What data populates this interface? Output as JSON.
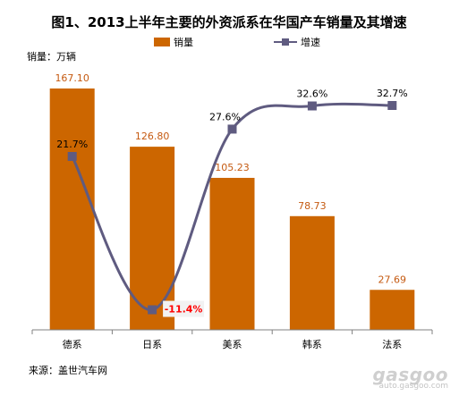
{
  "title": "图1、2013上半年主要的外资派系在华国产车销量及其增速",
  "unit_label": "销量：万辆",
  "source": "来源：盖世汽车网",
  "watermark": {
    "logo": "gasgoo",
    "url": "auto.gasgoo.com"
  },
  "colors": {
    "bar": "#cc6600",
    "line": "#5f5b80",
    "bar_label": "#c55a11",
    "line_label": "#000000",
    "negative_label": "#ff0000",
    "negative_label_bg": "#f2f2f2",
    "axis": "#808080"
  },
  "chart_data": {
    "type": "bar",
    "title": "图1、2013上半年主要的外资派系在华国产车销量及其增速",
    "categories": [
      "德系",
      "日系",
      "美系",
      "韩系",
      "法系"
    ],
    "series": [
      {
        "name": "销量",
        "type": "bar",
        "axis": "left",
        "values": [
          167.1,
          126.8,
          105.23,
          78.73,
          27.69
        ],
        "labels": [
          "167.10",
          "126.80",
          "105.23",
          "78.73",
          "27.69"
        ]
      },
      {
        "name": "增速",
        "type": "line",
        "axis": "right",
        "smooth": true,
        "values": [
          21.7,
          -11.4,
          27.6,
          32.6,
          32.7
        ],
        "labels": [
          "21.7%",
          "-11.4%",
          "27.6%",
          "32.6%",
          "32.7%"
        ]
      }
    ],
    "ylabel": "销量：万辆",
    "xlabel": "",
    "ylim": [
      0,
      180
    ],
    "y2lim": [
      -15,
      50
    ],
    "legend": "top-center",
    "grid": false
  }
}
